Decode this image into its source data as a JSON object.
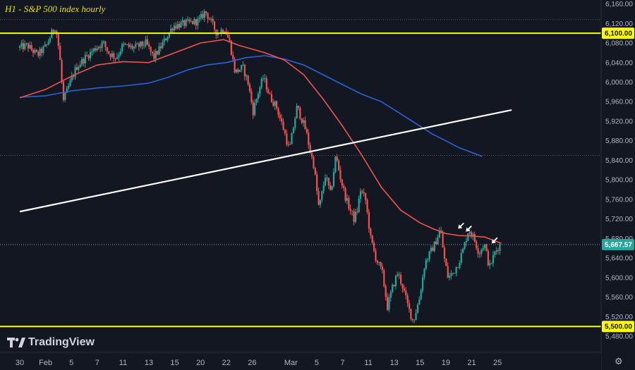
{
  "title": "H1 - S&P 500 index hourly",
  "brand": "TradingView",
  "icons": {
    "logo": "tradingview-logo-icon",
    "settings": "gear-icon",
    "arrow": "down-left-arrow-icon"
  },
  "colors": {
    "background": "#131722",
    "axis_text": "#b2b5be",
    "up_candle": "#26a69a",
    "down_candle": "#ef5350",
    "ma_red": "#ef5350",
    "ma_blue": "#2a62d8",
    "level_line": "#ffff00",
    "trend_line": "#ffffff",
    "price_tag": "#26a69a"
  },
  "chart_data": {
    "type": "candlestick",
    "title": "H1 - S&P 500 index hourly",
    "y_axis": {
      "ylim": [
        5470,
        6168
      ],
      "ticks": [
        6160,
        6120,
        6080,
        6040,
        6000,
        5960,
        5920,
        5880,
        5840,
        5800,
        5760,
        5720,
        5680,
        5640,
        5600,
        5560,
        5520,
        5480
      ],
      "tick_labels": [
        "6,160.00",
        "6,120.00",
        "6,080.00",
        "6,040.00",
        "6,000.00",
        "5,960.00",
        "5,920.00",
        "5,880.00",
        "5,840.00",
        "5,800.00",
        "5,760.00",
        "5,720.00",
        "5,680.00",
        "5,640.00",
        "5,600.00",
        "5,560.00",
        "5,520.00",
        "5,480.00"
      ]
    },
    "x_axis": {
      "labels": [
        "30",
        "Feb",
        "5",
        "7",
        "11",
        "13",
        "15",
        "20",
        "22",
        "26",
        "Mar",
        "5",
        "7",
        "11",
        "13",
        "15",
        "19",
        "21",
        "25"
      ],
      "session_index": [
        0,
        2,
        4,
        6,
        8,
        10,
        12,
        14,
        16,
        18,
        21,
        23,
        25,
        27,
        29,
        31,
        33,
        35,
        37
      ],
      "sessions": 38
    },
    "horizontal_levels": [
      {
        "value": 6100,
        "label": "6,100.00",
        "color": "#ffff00"
      },
      {
        "value": 5500,
        "label": "5,500.00",
        "color": "#ffff00"
      }
    ],
    "current_price": {
      "value": 5667.57,
      "label": "5,667.57"
    },
    "dotted_reference_levels": [
      6128,
      5850
    ],
    "trend_line": {
      "start": [
        0,
        5735
      ],
      "end": [
        38.1,
        5943
      ]
    },
    "ohlc_anchors": [
      [
        0,
        6070
      ],
      [
        0.7,
        6075
      ],
      [
        1.5,
        6055
      ],
      [
        2.2,
        6075
      ],
      [
        2.6,
        6100
      ],
      [
        2.9,
        6115
      ],
      [
        3.2,
        6060
      ],
      [
        3.5,
        5960
      ],
      [
        3.9,
        5990
      ],
      [
        4.5,
        6030
      ],
      [
        5.2,
        6050
      ],
      [
        6.0,
        6070
      ],
      [
        6.6,
        6080
      ],
      [
        7.0,
        6060
      ],
      [
        7.6,
        6050
      ],
      [
        8.1,
        6075
      ],
      [
        9.0,
        6070
      ],
      [
        9.9,
        6080
      ],
      [
        10.5,
        6050
      ],
      [
        11.0,
        6070
      ],
      [
        12.0,
        6115
      ],
      [
        13.0,
        6120
      ],
      [
        14.0,
        6125
      ],
      [
        14.5,
        6145
      ],
      [
        15.0,
        6120
      ],
      [
        15.4,
        6100
      ],
      [
        16.0,
        6110
      ],
      [
        16.4,
        6080
      ],
      [
        16.8,
        6020
      ],
      [
        17.4,
        6030
      ],
      [
        17.8,
        6000
      ],
      [
        18.2,
        5940
      ],
      [
        18.6,
        5980
      ],
      [
        19.0,
        6010
      ],
      [
        19.5,
        5970
      ],
      [
        20.0,
        5950
      ],
      [
        20.6,
        5900
      ],
      [
        21.0,
        5860
      ],
      [
        21.6,
        5950
      ],
      [
        22.3,
        5900
      ],
      [
        22.6,
        5860
      ],
      [
        22.9,
        5830
      ],
      [
        23.3,
        5740
      ],
      [
        23.8,
        5810
      ],
      [
        24.2,
        5770
      ],
      [
        24.6,
        5850
      ],
      [
        25.0,
        5800
      ],
      [
        25.4,
        5760
      ],
      [
        26.0,
        5720
      ],
      [
        26.3,
        5740
      ],
      [
        26.5,
        5780
      ],
      [
        26.9,
        5760
      ],
      [
        27.3,
        5680
      ],
      [
        27.7,
        5640
      ],
      [
        28.2,
        5610
      ],
      [
        28.6,
        5540
      ],
      [
        29.0,
        5580
      ],
      [
        29.4,
        5610
      ],
      [
        29.8,
        5580
      ],
      [
        30.2,
        5540
      ],
      [
        30.6,
        5510
      ],
      [
        31.1,
        5560
      ],
      [
        31.5,
        5630
      ],
      [
        31.9,
        5650
      ],
      [
        32.3,
        5670
      ],
      [
        32.7,
        5700
      ],
      [
        33.0,
        5640
      ],
      [
        33.3,
        5600
      ],
      [
        33.7,
        5610
      ],
      [
        34.1,
        5630
      ],
      [
        34.5,
        5660
      ],
      [
        34.9,
        5700
      ],
      [
        35.3,
        5680
      ],
      [
        35.7,
        5650
      ],
      [
        36.1,
        5670
      ],
      [
        36.5,
        5620
      ],
      [
        36.9,
        5650
      ],
      [
        37.3,
        5667.57
      ]
    ],
    "ma_red": [
      [
        0,
        5968
      ],
      [
        2,
        5985
      ],
      [
        4,
        6012
      ],
      [
        6,
        6035
      ],
      [
        8,
        6042
      ],
      [
        10,
        6040
      ],
      [
        12,
        6060
      ],
      [
        14,
        6080
      ],
      [
        15.8,
        6087
      ],
      [
        17,
        6075
      ],
      [
        19,
        6060
      ],
      [
        20.5,
        6045
      ],
      [
        22,
        6015
      ],
      [
        23.5,
        5965
      ],
      [
        25,
        5910
      ],
      [
        26.5,
        5850
      ],
      [
        28,
        5785
      ],
      [
        29.5,
        5738
      ],
      [
        31,
        5712
      ],
      [
        32,
        5700
      ],
      [
        33,
        5690
      ],
      [
        34,
        5686
      ],
      [
        35,
        5685
      ],
      [
        36,
        5683
      ],
      [
        37.3,
        5670
      ]
    ],
    "ma_blue": [
      [
        0,
        5969
      ],
      [
        2,
        5972
      ],
      [
        4,
        5982
      ],
      [
        6,
        5988
      ],
      [
        8,
        5992
      ],
      [
        10,
        5998
      ],
      [
        11.5,
        6010
      ],
      [
        13,
        6025
      ],
      [
        14.5,
        6035
      ],
      [
        16,
        6040
      ],
      [
        17.5,
        6050
      ],
      [
        19,
        6054
      ],
      [
        20.5,
        6047
      ],
      [
        22,
        6035
      ],
      [
        23.5,
        6015
      ],
      [
        25,
        5995
      ],
      [
        26.5,
        5975
      ],
      [
        28,
        5960
      ],
      [
        29.5,
        5935
      ],
      [
        31,
        5910
      ],
      [
        32,
        5893
      ],
      [
        33,
        5880
      ],
      [
        34,
        5866
      ],
      [
        35,
        5856
      ],
      [
        35.8,
        5848
      ]
    ],
    "annotations": [
      {
        "type": "arrow",
        "session": 33.95,
        "value": 5700
      },
      {
        "type": "arrow",
        "session": 34.55,
        "value": 5694
      },
      {
        "type": "arrow",
        "session": 36.55,
        "value": 5670
      }
    ]
  }
}
